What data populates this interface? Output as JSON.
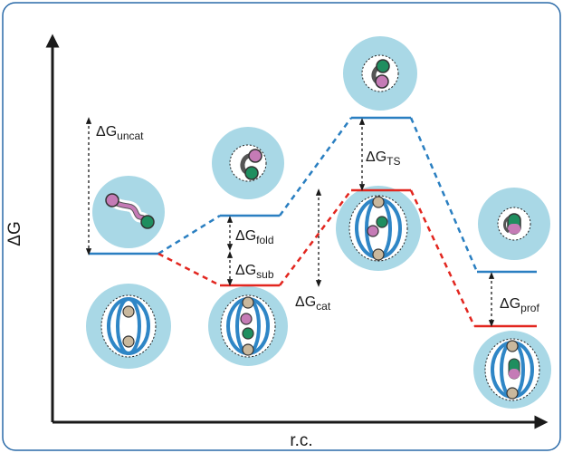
{
  "axes": {
    "y_label": "ΔG",
    "x_label": "r.c."
  },
  "energy_labels": {
    "uncat": {
      "prefix": "ΔG",
      "sub": "uncat"
    },
    "fold": {
      "prefix": "ΔG",
      "sub": "fold"
    },
    "sub": {
      "prefix": "ΔG",
      "sub": "sub"
    },
    "cat": {
      "prefix": "ΔG",
      "sub": "cat"
    },
    "ts": {
      "prefix": "ΔG",
      "sub": "TS"
    },
    "prof": {
      "prefix": "ΔG",
      "sub": "prof"
    }
  },
  "colors": {
    "uncatalyzed_path": "#2a7fc1",
    "catalyzed_path": "#e2261f",
    "circle_fill": "#a9d8e6",
    "frame_border": "#2a6aa8",
    "molecule_pink": "#c57bb6",
    "molecule_green": "#1f8e5f",
    "ring_blue": "#2f86c6",
    "ring_tan": "#c9b89d"
  },
  "paths": [
    {
      "name": "uncatalyzed",
      "style": "solid-levels-dashed-connectors"
    },
    {
      "name": "catalyzed",
      "style": "solid-levels-dashed-connectors"
    }
  ]
}
